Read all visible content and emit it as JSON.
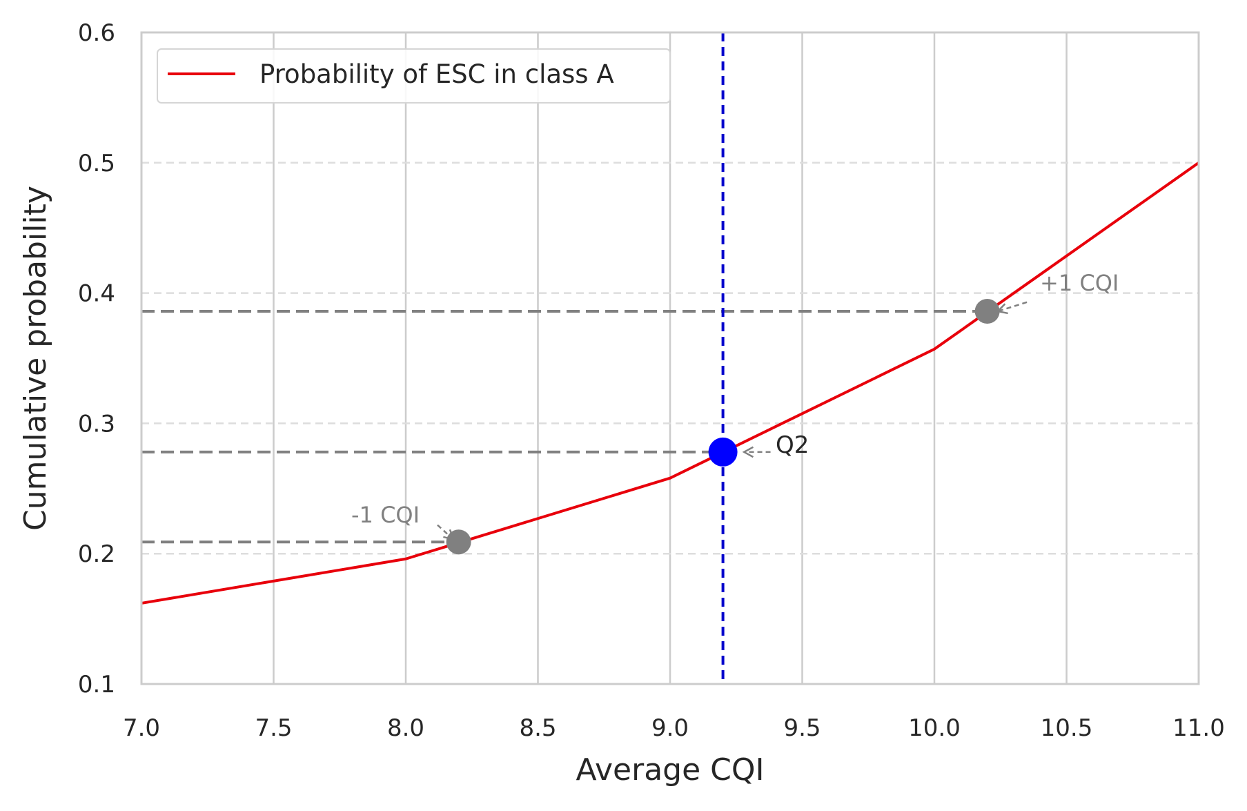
{
  "chart_data": {
    "type": "line",
    "title": "",
    "xlabel": "Average CQI",
    "ylabel": "Cumulative probability",
    "xlim": [
      7.0,
      11.0
    ],
    "ylim": [
      0.1,
      0.6
    ],
    "x_ticks": [
      "7.0",
      "7.5",
      "8.0",
      "8.5",
      "9.0",
      "9.5",
      "10.0",
      "10.5",
      "11.0"
    ],
    "y_ticks": [
      "0.1",
      "0.2",
      "0.3",
      "0.4",
      "0.5",
      "0.6"
    ],
    "x_grid": "solid",
    "y_grid": "dashed",
    "legend_position": "upper-left",
    "series": [
      {
        "name": "Probability of ESC in class A",
        "color": "#e8000b",
        "x": [
          7.0,
          8.0,
          9.0,
          10.0,
          11.0
        ],
        "y": [
          0.162,
          0.196,
          0.258,
          0.357,
          0.5
        ]
      }
    ],
    "vertical_line": {
      "x": 9.2,
      "color": "#0000cc",
      "style": "dashed"
    },
    "markers": [
      {
        "label": "Q2",
        "x": 9.2,
        "y": 0.278,
        "color": "#0000ff"
      },
      {
        "label": "-1 CQI",
        "x": 8.2,
        "y": 0.209,
        "color": "#808080"
      },
      {
        "label": "+1 CQI",
        "x": 10.2,
        "y": 0.386,
        "color": "#808080"
      }
    ],
    "horizontal_reference_lines": [
      {
        "y": 0.386,
        "x_end": 10.2,
        "color": "#808080"
      },
      {
        "y": 0.278,
        "x_end": 9.2,
        "color": "#808080"
      },
      {
        "y": 0.209,
        "x_end": 8.2,
        "color": "#808080"
      }
    ],
    "annotations": [
      {
        "text": "Q2",
        "x": 9.4,
        "y": 0.28
      },
      {
        "text": "-1 CQI",
        "x": 7.8,
        "y": 0.225
      },
      {
        "text": "+1 CQI",
        "x": 10.4,
        "y": 0.4
      }
    ]
  }
}
